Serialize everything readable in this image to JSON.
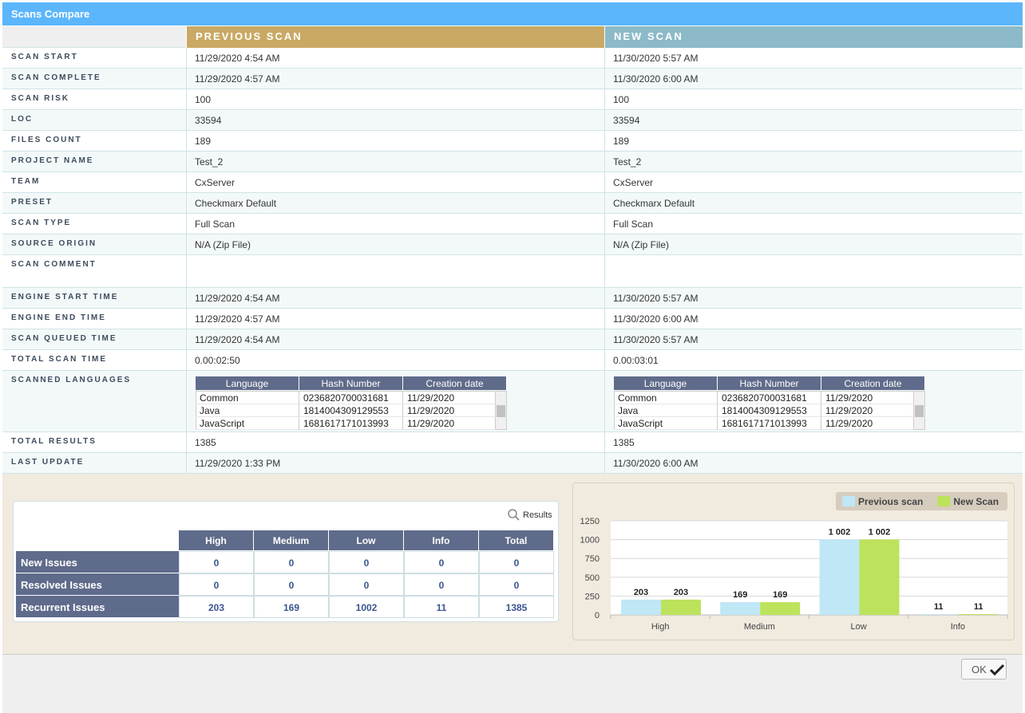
{
  "header": {
    "title": "Scans Compare"
  },
  "compare": {
    "columns": [
      "PREVIOUS SCAN",
      "NEW SCAN"
    ],
    "language_columns": [
      "Language",
      "Hash Number",
      "Creation date"
    ],
    "rows": [
      {
        "label": "SCAN START",
        "values": [
          "11/29/2020 4:54 AM",
          "11/30/2020 5:57 AM"
        ]
      },
      {
        "label": "SCAN COMPLETE",
        "values": [
          "11/29/2020 4:57 AM",
          "11/30/2020 6:00 AM"
        ]
      },
      {
        "label": "SCAN RISK",
        "values": [
          "100",
          "100"
        ]
      },
      {
        "label": "LOC",
        "values": [
          "33594",
          "33594"
        ]
      },
      {
        "label": "FILES COUNT",
        "values": [
          "189",
          "189"
        ]
      },
      {
        "label": "PROJECT NAME",
        "values": [
          "Test_2",
          "Test_2"
        ]
      },
      {
        "label": "TEAM",
        "values": [
          "CxServer",
          "CxServer"
        ]
      },
      {
        "label": "PRESET",
        "values": [
          "Checkmarx Default",
          "Checkmarx Default"
        ]
      },
      {
        "label": "SCAN TYPE",
        "values": [
          "Full Scan",
          "Full Scan"
        ]
      },
      {
        "label": "SOURCE ORIGIN",
        "values": [
          "N/A (Zip File)",
          "N/A (Zip File)"
        ]
      },
      {
        "label": "SCAN COMMENT"
      },
      {
        "label": "ENGINE START TIME",
        "values": [
          "11/29/2020 4:54 AM",
          "11/30/2020 5:57 AM"
        ]
      },
      {
        "label": "ENGINE END TIME",
        "values": [
          "11/29/2020 4:57 AM",
          "11/30/2020 6:00 AM"
        ]
      },
      {
        "label": "SCAN QUEUED TIME",
        "values": [
          "11/29/2020 4:54 AM",
          "11/30/2020 5:57 AM"
        ]
      },
      {
        "label": "TOTAL SCAN TIME",
        "values": [
          "0.00:02:50",
          "0.00:03:01"
        ]
      },
      {
        "label": "SCANNED LANGUAGES",
        "languages": [
          [
            [
              "Common",
              "0236820700031681",
              "11/29/2020"
            ],
            [
              "Java",
              "1814004309129553",
              "11/29/2020"
            ],
            [
              "JavaScript",
              "1681617171013993",
              "11/29/2020"
            ]
          ],
          [
            [
              "Common",
              "0236820700031681",
              "11/29/2020"
            ],
            [
              "Java",
              "1814004309129553",
              "11/29/2020"
            ],
            [
              "JavaScript",
              "1681617171013993",
              "11/29/2020"
            ]
          ]
        ]
      },
      {
        "label": "TOTAL RESULTS",
        "values": [
          "1385",
          "1385"
        ]
      },
      {
        "label": "LAST UPDATE",
        "values": [
          "11/29/2020 1:33 PM",
          "11/30/2020 6:00 AM"
        ]
      }
    ]
  },
  "results": {
    "search_label": "Results",
    "columns": [
      "High",
      "Medium",
      "Low",
      "Info",
      "Total"
    ],
    "rows": [
      {
        "label": "New Issues",
        "values": [
          "0",
          "0",
          "0",
          "0",
          "0"
        ]
      },
      {
        "label": "Resolved Issues",
        "values": [
          "0",
          "0",
          "0",
          "0",
          "0"
        ]
      },
      {
        "label": "Recurrent Issues",
        "values": [
          "203",
          "169",
          "1002",
          "11",
          "1385"
        ]
      }
    ]
  },
  "chart_data": {
    "type": "bar",
    "categories": [
      "High",
      "Medium",
      "Low",
      "Info"
    ],
    "series": [
      {
        "name": "Previous scan",
        "color": "#bfe7f6",
        "values": [
          203,
          169,
          1002,
          11
        ],
        "value_labels": [
          "203",
          "169",
          "1 002",
          "11"
        ]
      },
      {
        "name": "New Scan",
        "color": "#bce35b",
        "values": [
          203,
          169,
          1002,
          11
        ],
        "value_labels": [
          "203",
          "169",
          "1 002",
          "11"
        ]
      }
    ],
    "ylim": [
      0,
      1250
    ],
    "yticks": [
      0,
      250,
      500,
      750,
      1000,
      1250
    ],
    "grid": true
  },
  "footer": {
    "ok": "OK"
  }
}
